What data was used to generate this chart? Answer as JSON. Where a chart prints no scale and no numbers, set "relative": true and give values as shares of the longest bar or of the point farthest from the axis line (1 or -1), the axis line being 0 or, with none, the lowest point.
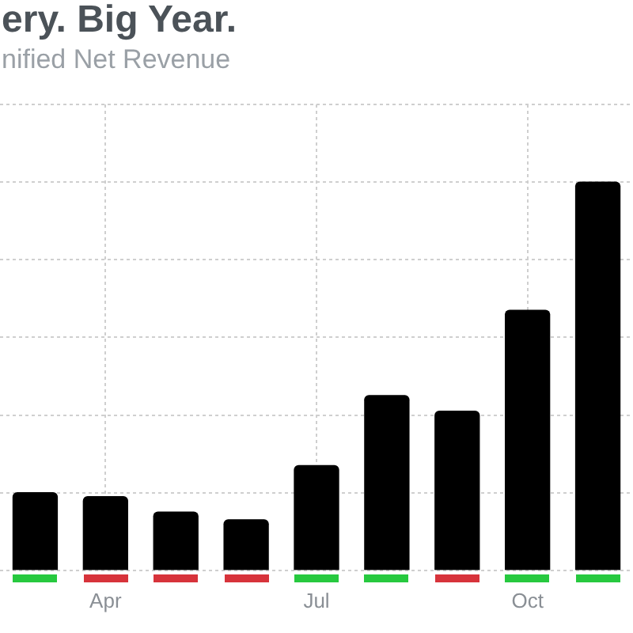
{
  "chart_data": {
    "type": "bar",
    "title": "ery. Big Year.",
    "subtitle": "nified Net Revenue",
    "categories": [
      null,
      "Apr",
      null,
      null,
      "Jul",
      null,
      null,
      "Oct",
      null
    ],
    "values": [
      0.2,
      0.19,
      0.15,
      0.13,
      0.27,
      0.45,
      0.41,
      0.67,
      1
    ],
    "color": "#000000",
    "relative": true,
    "grid": true
  }
}
